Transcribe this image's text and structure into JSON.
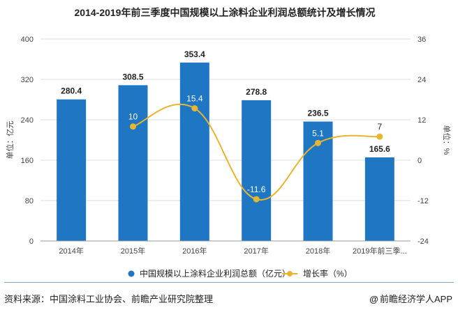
{
  "chart_data": {
    "type": "bar",
    "title": "2014-2019年前三季度中国规模以上涂料企业利润总额统计及增长情况",
    "categories": [
      "2014年",
      "2015年",
      "2016年",
      "2017年",
      "2018年",
      "2019年前三季..."
    ],
    "series": [
      {
        "name": "中国规模以上涂料企业利润总额（亿元）",
        "type": "bar",
        "axis": "left",
        "values": [
          280.4,
          308.5,
          353.4,
          278.8,
          236.5,
          165.6
        ],
        "labels": [
          "280.4",
          "308.5",
          "353.4",
          "278.8",
          "236.5",
          "165.6"
        ],
        "color": "#1f77c4"
      },
      {
        "name": "增长率（%）",
        "type": "line",
        "axis": "right",
        "values": [
          null,
          10,
          15.4,
          -11.6,
          5.1,
          7
        ],
        "labels": [
          "",
          "10",
          "15.4",
          "-11.6",
          "5.1",
          "7"
        ],
        "color": "#e8b531"
      }
    ],
    "ylabel": "单位：亿元",
    "y2label": "单位：%",
    "ylim": [
      0,
      400
    ],
    "yticks": [
      "0",
      "80",
      "160",
      "240",
      "320",
      "400"
    ],
    "y2lim": [
      -24,
      36
    ],
    "y2ticks": [
      "-24",
      "-12",
      "0",
      "12",
      "24",
      "36"
    ],
    "legend_position": "bottom"
  },
  "footer": {
    "source": "资料来源：中国涂料工业协会、前瞻产业研究院整理",
    "credit_symbol": "@",
    "credit": "前瞻经济学人APP"
  }
}
